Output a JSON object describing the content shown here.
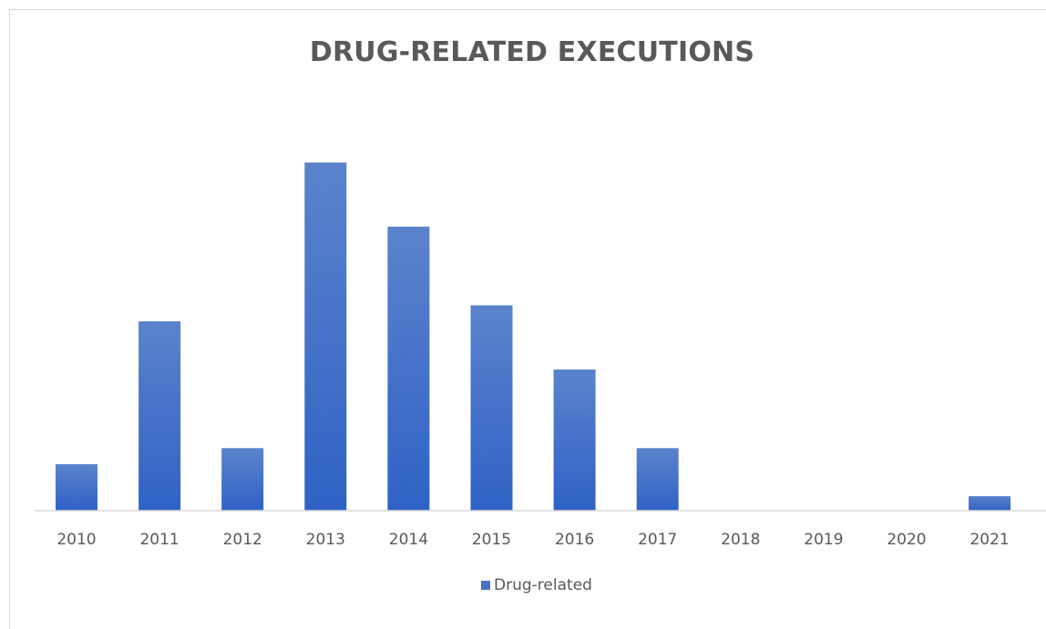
{
  "chart_data": {
    "type": "bar",
    "title": "DRUG-RELATED EXECUTIONS",
    "xlabel": "",
    "ylabel": "",
    "categories": [
      "2010",
      "2011",
      "2012",
      "2013",
      "2014",
      "2015",
      "2016",
      "2017",
      "2018",
      "2019",
      "2020",
      "2021"
    ],
    "series": [
      {
        "name": "Drug-related",
        "values": [
          14.5,
          59,
          19.5,
          108.5,
          88.5,
          64,
          44,
          19.5,
          0,
          0,
          0,
          4.5
        ]
      }
    ],
    "ylim": [
      0,
      120
    ],
    "grid": false,
    "y_axis_shown": false,
    "legend_position": "bottom",
    "bar_color": "#4472c4"
  }
}
